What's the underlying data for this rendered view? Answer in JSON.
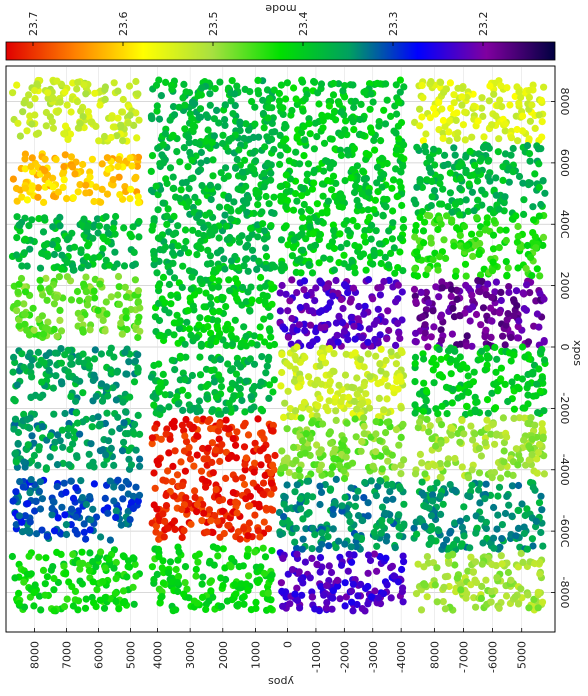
{
  "chart_data": {
    "type": "scatter",
    "title": "",
    "orientation": "rotated-90",
    "xlabel": "xpos",
    "ylabel": "ypos",
    "colorbar": {
      "label": "mode",
      "tick_labels": [
        "23.7",
        "23.6",
        "23.5",
        "23.4",
        "23.3",
        "23.2"
      ],
      "ticks": [
        23.7,
        23.6,
        23.5,
        23.4,
        23.3,
        23.2
      ],
      "range": [
        23.73,
        23.12
      ],
      "stops": [
        "#e00000",
        "#ff8000",
        "#ffff00",
        "#a8e040",
        "#00e000",
        "#00a060",
        "#0000ff",
        "#8000a0",
        "#000040"
      ]
    },
    "xpos_ticks": [
      -8000,
      -6000,
      -4000,
      -2000,
      0,
      2000,
      4000,
      6000,
      8000
    ],
    "xpos_tick_labels": [
      "-8000",
      "-600C",
      "-4000",
      "-2000",
      "0",
      "2000",
      "400C",
      "6000",
      "8000"
    ],
    "ypos_ticks": [
      8000,
      7000,
      6000,
      5000,
      4000,
      3000,
      2000,
      1000,
      0,
      -1000,
      -2000,
      -3000,
      -4000,
      5000,
      6000,
      7000,
      8000
    ],
    "ypos_tick_labels": [
      "8000",
      "7000",
      "6000",
      "5000",
      "4000",
      "3000",
      "2000",
      "1000",
      "0",
      "-1000",
      "-2000",
      "-3000",
      "-4000",
      "5000",
      "-6000",
      "-7000",
      "8000"
    ],
    "grid": true,
    "panels": [
      {
        "ypos_range": [
          4700,
          8700
        ],
        "xpos_bands": [
          {
            "range": [
              6700,
              8700
            ],
            "mode": 23.53
          },
          {
            "range": [
              4700,
              6300
            ],
            "mode": 23.61
          },
          {
            "range": [
              2500,
              4300
            ],
            "mode": 23.38
          },
          {
            "range": [
              300,
              2300
            ],
            "mode": 23.47
          },
          {
            "range": [
              -1800,
              0
            ],
            "mode": 23.36
          },
          {
            "range": [
              -4000,
              -2100
            ],
            "mode": 23.35
          },
          {
            "range": [
              -6300,
              -4300
            ],
            "mode": 23.31
          },
          {
            "range": [
              -8600,
              -6600
            ],
            "mode": 23.42
          }
        ]
      },
      {
        "ypos_range": [
          400,
          4200
        ],
        "xpos_bands": [
          {
            "range": [
              2400,
              8700
            ],
            "mode": 23.38
          },
          {
            "range": [
              0,
              2300
            ],
            "mode": 23.4
          },
          {
            "range": [
              -2200,
              -300
            ],
            "mode": 23.38
          },
          {
            "range": [
              -6300,
              -2300
            ],
            "mode": 23.71
          },
          {
            "range": [
              -8600,
              -6500
            ],
            "mode": 23.42
          }
        ]
      },
      {
        "ypos_range": [
          -4100,
          300
        ],
        "xpos_bands": [
          {
            "range": [
              2400,
              8700
            ],
            "mode": 23.4
          },
          {
            "range": [
              0,
              2200
            ],
            "mode": 23.22
          },
          {
            "range": [
              -2300,
              0
            ],
            "mode": 23.53
          },
          {
            "range": [
              -4300,
              -2300
            ],
            "mode": 23.48
          },
          {
            "range": [
              -6600,
              -4300
            ],
            "mode": 23.34
          },
          {
            "range": [
              -8600,
              -6700
            ],
            "mode": 23.23
          }
        ]
      },
      {
        "ypos_range": [
          4200,
          8700
        ],
        "xpos_bands": [
          {
            "range": [
              6700,
              8700
            ],
            "mode": 23.55
          },
          {
            "range": [
              4300,
              6600
            ],
            "mode": 23.38
          },
          {
            "range": [
              2300,
              4300
            ],
            "mode": 23.44
          },
          {
            "range": [
              0,
              2200
            ],
            "mode": 23.19
          },
          {
            "range": [
              -2200,
              0
            ],
            "mode": 23.4
          },
          {
            "range": [
              -4300,
              -2300
            ],
            "mode": 23.5
          },
          {
            "range": [
              -6600,
              -4400
            ],
            "mode": 23.35
          },
          {
            "range": [
              -8600,
              -6700
            ],
            "mode": 23.5
          }
        ]
      }
    ]
  }
}
